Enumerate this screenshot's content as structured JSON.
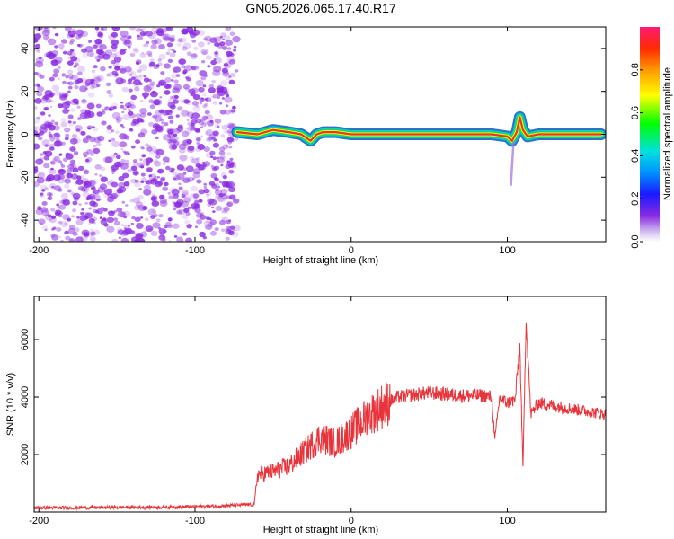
{
  "title": "GN05.2026.065.17.40.R17",
  "colors": {
    "scatter": "#8a2be2",
    "signal_core": "#e8333a",
    "signal_mid": "#ffff00",
    "signal_outer": "#1565c0",
    "snr_line": "#e8333a"
  },
  "chart_data": [
    {
      "type": "heatmap",
      "name": "spectrogram",
      "xlabel": "Height of straight line (km)",
      "ylabel": "Frequency (Hz)",
      "xlim": [
        -203,
        163
      ],
      "ylim": [
        -50,
        50
      ],
      "xticks": [
        -200,
        -100,
        0,
        100
      ],
      "xtick_labels": [
        "-200",
        "-100",
        "0",
        "100"
      ],
      "yticks": [
        40,
        20,
        0,
        -20,
        -40
      ],
      "ytick_labels": [
        "40",
        "20",
        "0",
        "-20",
        "-40"
      ],
      "noise_region_x": [
        -203,
        -73
      ],
      "signal_trace": {
        "x": [
          -73,
          -60,
          -50,
          -40,
          -32,
          -26,
          -22,
          -18,
          -10,
          0,
          30,
          60,
          80,
          90,
          100,
          103,
          106,
          108,
          110,
          113,
          120,
          140,
          160
        ],
        "y": [
          1,
          0,
          2,
          1,
          0,
          -3,
          0,
          1,
          1,
          0,
          0,
          0,
          0,
          0,
          -1,
          -3,
          1,
          8,
          2,
          -1,
          0,
          0,
          0
        ]
      },
      "colorbar": {
        "label": "Normalized spectral amplitude",
        "range": [
          0,
          1
        ],
        "ticks": [
          0.0,
          0.2,
          0.4,
          0.6,
          0.8
        ],
        "tick_labels": [
          "0.0",
          "0.2",
          "0.4",
          "0.6",
          "0.8"
        ]
      }
    },
    {
      "type": "line",
      "name": "snr",
      "xlabel": "Height of straight line (km)",
      "ylabel": "SNR (10 * v/v)",
      "xlim": [
        -203,
        163
      ],
      "ylim": [
        0,
        7500
      ],
      "xticks": [
        -200,
        -100,
        0,
        100
      ],
      "xtick_labels": [
        "-200",
        "-100",
        "0",
        "100"
      ],
      "yticks": [
        2000,
        4000,
        6000
      ],
      "ytick_labels": [
        "2000",
        "4000",
        "6000"
      ],
      "series": [
        {
          "name": "SNR",
          "x": [
            -203,
            -180,
            -150,
            -120,
            -90,
            -70,
            -62,
            -60,
            -50,
            -40,
            -30,
            -20,
            -10,
            0,
            10,
            20,
            30,
            50,
            70,
            85,
            90,
            92,
            95,
            100,
            105,
            108,
            110,
            112,
            115,
            120,
            140,
            163
          ],
          "y": [
            150,
            150,
            160,
            170,
            200,
            250,
            260,
            1300,
            1400,
            1600,
            2100,
            2600,
            2400,
            2800,
            3300,
            3700,
            4000,
            4150,
            4050,
            4050,
            4000,
            2500,
            3950,
            3800,
            3900,
            5800,
            1500,
            6800,
            3400,
            3800,
            3600,
            3400
          ]
        }
      ]
    }
  ]
}
